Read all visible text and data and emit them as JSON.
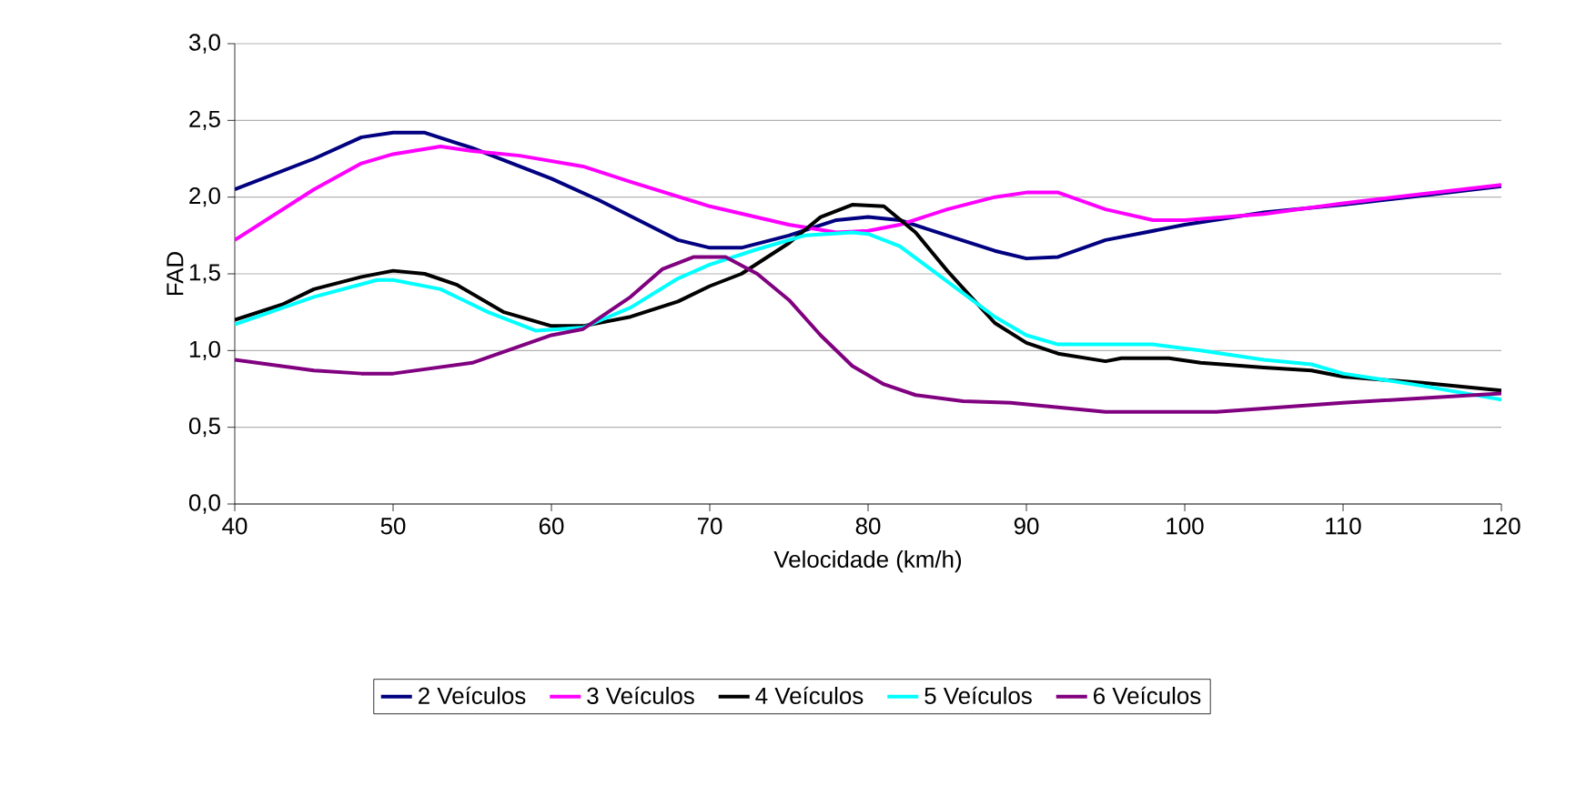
{
  "chart_data": {
    "type": "line",
    "xlabel": "Velocidade (km/h)",
    "ylabel": "FAD",
    "xlim": [
      40,
      120
    ],
    "xticks": [
      40,
      50,
      60,
      70,
      80,
      90,
      100,
      110,
      120
    ],
    "ylim": [
      0,
      3
    ],
    "yticks": [
      {
        "value": 0,
        "label": "0,0"
      },
      {
        "value": 0.5,
        "label": "0,5"
      },
      {
        "value": 1,
        "label": "1,0"
      },
      {
        "value": 1.5,
        "label": "1,5"
      },
      {
        "value": 2,
        "label": "2,0"
      },
      {
        "value": 2.5,
        "label": "2,5"
      },
      {
        "value": 3,
        "label": "3,0"
      }
    ],
    "grid": "y",
    "legend": "bottom",
    "marker": "none",
    "line_style": "solid",
    "series": [
      {
        "name": "2 Veículos",
        "color": "#000080",
        "x": [
          40,
          45,
          48,
          50,
          52,
          55,
          60,
          63,
          68,
          70,
          72,
          75,
          78,
          80,
          82,
          85,
          88,
          90,
          92,
          95,
          100,
          105,
          110,
          115,
          120
        ],
        "values": [
          2.05,
          2.25,
          2.39,
          2.42,
          2.42,
          2.32,
          2.12,
          1.98,
          1.72,
          1.67,
          1.67,
          1.75,
          1.85,
          1.87,
          1.85,
          1.75,
          1.65,
          1.6,
          1.61,
          1.72,
          1.82,
          1.9,
          1.95,
          2.01,
          2.07
        ]
      },
      {
        "name": "3 Veículos",
        "color": "#ff00ff",
        "x": [
          40,
          45,
          48,
          50,
          53,
          55,
          58,
          62,
          65,
          70,
          75,
          78,
          80,
          82,
          85,
          88,
          90,
          92,
          95,
          98,
          100,
          105,
          110,
          115,
          120
        ],
        "values": [
          1.72,
          2.05,
          2.22,
          2.28,
          2.33,
          2.3,
          2.27,
          2.2,
          2.1,
          1.94,
          1.82,
          1.77,
          1.78,
          1.82,
          1.92,
          2.0,
          2.03,
          2.03,
          1.92,
          1.85,
          1.85,
          1.89,
          1.96,
          2.02,
          2.08
        ]
      },
      {
        "name": "4 Veículos",
        "color": "#000000",
        "x": [
          40,
          43,
          45,
          48,
          50,
          52,
          54,
          57,
          60,
          62,
          65,
          68,
          70,
          72,
          75,
          77,
          79,
          81,
          83,
          85,
          88,
          90,
          92,
          95,
          96,
          99,
          101,
          105,
          108,
          110,
          115,
          120
        ],
        "values": [
          1.2,
          1.3,
          1.4,
          1.48,
          1.52,
          1.5,
          1.43,
          1.25,
          1.16,
          1.16,
          1.22,
          1.32,
          1.42,
          1.5,
          1.7,
          1.87,
          1.95,
          1.94,
          1.77,
          1.52,
          1.18,
          1.05,
          0.98,
          0.93,
          0.95,
          0.95,
          0.92,
          0.89,
          0.87,
          0.83,
          0.79,
          0.74
        ]
      },
      {
        "name": "5 Veículos",
        "color": "#00ffff",
        "x": [
          40,
          45,
          49,
          50,
          53,
          56,
          59,
          62,
          65,
          68,
          70,
          73,
          76,
          79,
          80,
          82,
          85,
          88,
          90,
          92,
          95,
          98,
          101,
          105,
          108,
          110,
          115,
          120
        ],
        "values": [
          1.17,
          1.35,
          1.46,
          1.46,
          1.4,
          1.25,
          1.13,
          1.15,
          1.28,
          1.47,
          1.56,
          1.66,
          1.75,
          1.77,
          1.76,
          1.68,
          1.45,
          1.22,
          1.1,
          1.04,
          1.04,
          1.04,
          1.0,
          0.94,
          0.91,
          0.85,
          0.77,
          0.68
        ]
      },
      {
        "name": "6 Veículos",
        "color": "#800080",
        "x": [
          40,
          45,
          48,
          50,
          55,
          60,
          62,
          65,
          67,
          69,
          71,
          73,
          75,
          77,
          79,
          81,
          83,
          86,
          89,
          92,
          95,
          98,
          102,
          110,
          120
        ],
        "values": [
          0.94,
          0.87,
          0.85,
          0.85,
          0.92,
          1.1,
          1.14,
          1.35,
          1.53,
          1.61,
          1.61,
          1.5,
          1.33,
          1.1,
          0.9,
          0.78,
          0.71,
          0.67,
          0.66,
          0.63,
          0.6,
          0.6,
          0.6,
          0.66,
          0.72
        ]
      }
    ]
  }
}
